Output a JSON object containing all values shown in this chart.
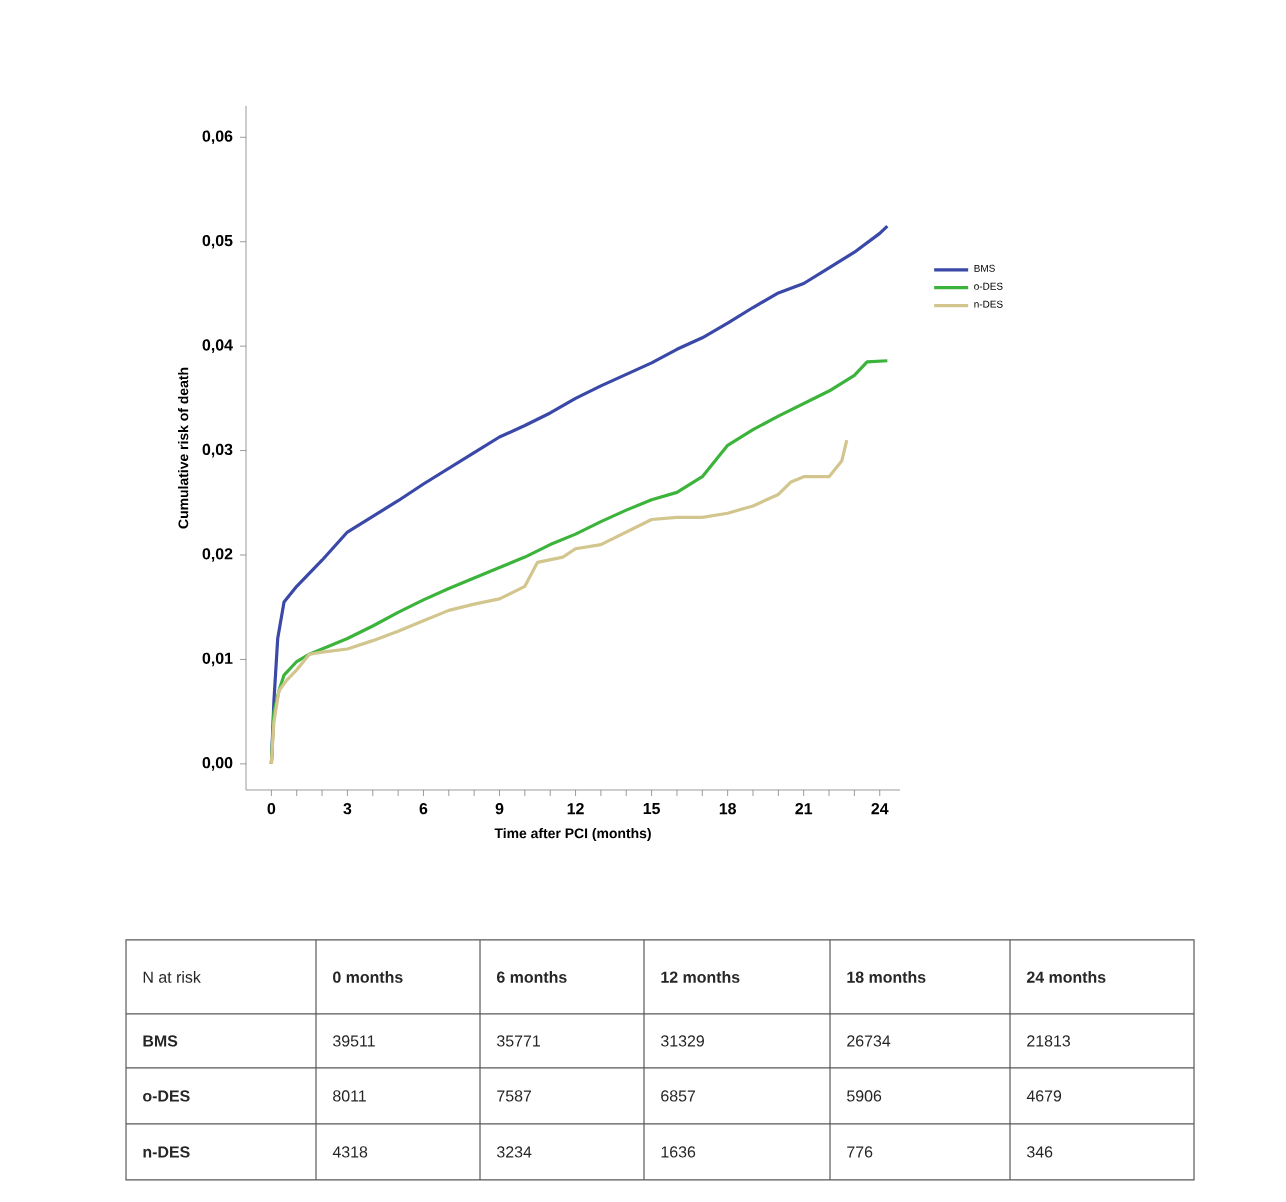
{
  "chart_data": [
    {
      "type": "line",
      "xlabel": "Time after PCI (months)",
      "ylabel": "Cumulative risk of death",
      "xlim": [
        -1,
        24.8
      ],
      "ylim": [
        -0.0025,
        0.063
      ],
      "xticks": [
        0,
        {
          "value": 1,
          "label": null
        },
        {
          "value": 2,
          "label": null
        },
        3,
        {
          "value": 4,
          "label": null
        },
        {
          "value": 5,
          "label": null
        },
        6,
        {
          "value": 7,
          "label": null
        },
        {
          "value": 8,
          "label": null
        },
        9,
        {
          "value": 10,
          "label": null
        },
        {
          "value": 11,
          "label": null
        },
        12,
        {
          "value": 13,
          "label": null
        },
        {
          "value": 14,
          "label": null
        },
        15,
        {
          "value": 16,
          "label": null
        },
        {
          "value": 17,
          "label": null
        },
        18,
        {
          "value": 19,
          "label": null
        },
        {
          "value": 20,
          "label": null
        },
        21,
        {
          "value": 22,
          "label": null
        },
        {
          "value": 23,
          "label": null
        },
        24
      ],
      "yticks": [
        {
          "value": 0,
          "label": "0,00"
        },
        {
          "value": 0.01,
          "label": "0,01"
        },
        {
          "value": 0.02,
          "label": "0,02"
        },
        {
          "value": 0.03,
          "label": "0,03"
        },
        {
          "value": 0.04,
          "label": "0,04"
        },
        {
          "value": 0.05,
          "label": "0,05"
        },
        {
          "value": 0.06,
          "label": "0,06"
        }
      ],
      "legend": "right",
      "marker": "none",
      "line_style": "solid",
      "grid": false,
      "series": [
        {
          "name": "BMS",
          "color": "#3a48a8",
          "x": [
            0,
            0.1,
            0.25,
            0.5,
            1,
            2,
            3,
            4,
            5,
            6,
            7,
            8,
            9,
            10,
            11,
            12,
            13,
            14,
            15,
            16,
            17,
            18,
            19,
            20,
            21,
            22,
            23,
            24,
            24.3
          ],
          "values": [
            0,
            0.006,
            0.012,
            0.0155,
            0.017,
            0.0195,
            0.0222,
            0.0237,
            0.0252,
            0.0268,
            0.0283,
            0.0298,
            0.0313,
            0.0324,
            0.0336,
            0.035,
            0.0362,
            0.0373,
            0.0384,
            0.0397,
            0.0408,
            0.0422,
            0.0437,
            0.0451,
            0.046,
            0.0475,
            0.049,
            0.0508,
            0.0515
          ]
        },
        {
          "name": "o-DES",
          "color": "#3cb43c",
          "x": [
            0,
            0.1,
            0.3,
            0.5,
            1,
            1.5,
            2,
            3,
            4,
            5,
            6,
            7,
            8,
            9,
            10,
            11,
            12,
            13,
            14,
            15,
            16,
            17,
            18,
            19,
            20,
            21,
            22,
            23,
            23.5,
            24.3
          ],
          "values": [
            0,
            0.005,
            0.007,
            0.0085,
            0.0098,
            0.0105,
            0.011,
            0.012,
            0.0132,
            0.0145,
            0.0157,
            0.0168,
            0.0178,
            0.0188,
            0.0198,
            0.021,
            0.022,
            0.0232,
            0.0243,
            0.0253,
            0.026,
            0.0275,
            0.0305,
            0.032,
            0.0333,
            0.0345,
            0.0357,
            0.0372,
            0.0385,
            0.0386
          ]
        },
        {
          "name": "n-DES",
          "color": "#d2c68e",
          "x": [
            0,
            0.1,
            0.3,
            0.6,
            1,
            1.5,
            2,
            3,
            4,
            5,
            6,
            7,
            8,
            9,
            10,
            10.5,
            11.5,
            12,
            13,
            14,
            15,
            16,
            17,
            18,
            19,
            20,
            20.5,
            21,
            22,
            22.5,
            22.7
          ],
          "values": [
            0,
            0.004,
            0.007,
            0.008,
            0.009,
            0.0105,
            0.0107,
            0.011,
            0.0118,
            0.0127,
            0.0137,
            0.0147,
            0.0153,
            0.0158,
            0.017,
            0.0193,
            0.0198,
            0.0206,
            0.021,
            0.0222,
            0.0234,
            0.0236,
            0.0236,
            0.024,
            0.0247,
            0.0258,
            0.027,
            0.0275,
            0.0275,
            0.029,
            0.031
          ]
        }
      ]
    },
    {
      "type": "other",
      "title": "N at risk",
      "data_labels": true,
      "categories": [
        "0 months",
        "6 months",
        "12 months",
        "18 months",
        "24 months"
      ],
      "series": [
        {
          "name": "BMS",
          "values": [
            39511,
            35771,
            31329,
            26734,
            21813
          ]
        },
        {
          "name": "o-DES",
          "values": [
            8011,
            7587,
            6857,
            5906,
            4679
          ]
        },
        {
          "name": "n-DES",
          "values": [
            4318,
            3234,
            1636,
            776,
            346
          ]
        }
      ]
    }
  ]
}
